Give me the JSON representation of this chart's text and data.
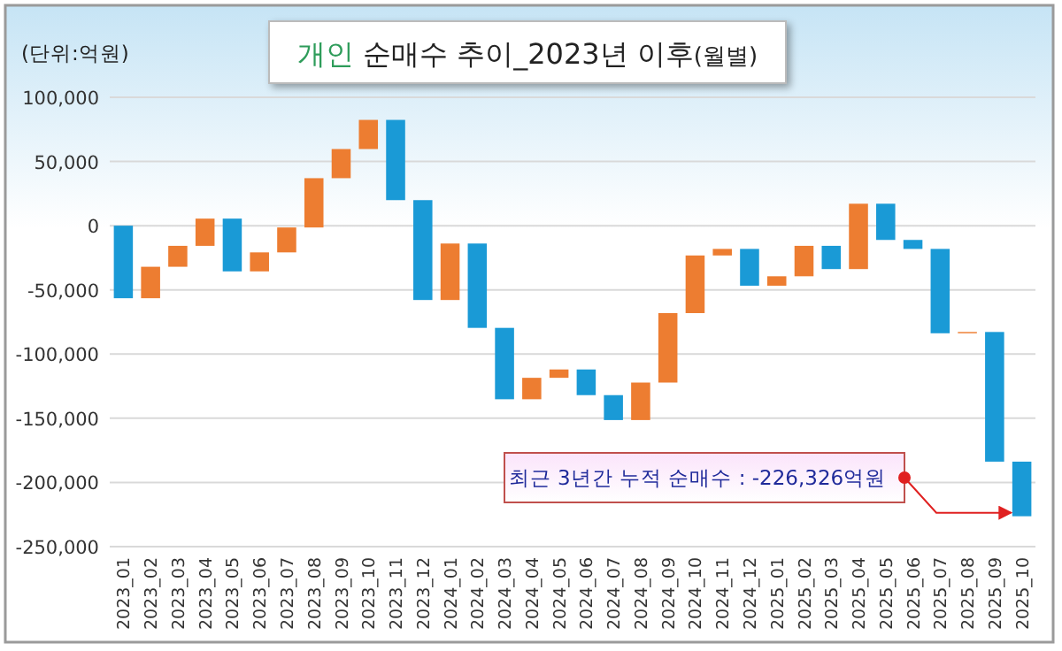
{
  "chart_data": {
    "type": "bar",
    "title": "개인 순매수 추이_2023년 이후(월별)",
    "ylabel": "(단위:억원)",
    "categories": [
      "2023_01",
      "2023_02",
      "2023_03",
      "2023_04",
      "2023_05",
      "2023_06",
      "2023_07",
      "2023_08",
      "2023_09",
      "2023_10",
      "2023_11",
      "2023_12",
      "2024_01",
      "2024_02",
      "2024_03",
      "2024_04",
      "2024_05",
      "2024_06",
      "2024_07",
      "2024_08",
      "2024_09",
      "2024_10",
      "2024_11",
      "2024_12",
      "2025_01",
      "2025_02",
      "2025_03",
      "2025_04",
      "2025_05",
      "2025_06",
      "2025_07",
      "2025_08",
      "2025_09",
      "2025_10"
    ],
    "values": [
      -56500,
      24500,
      16300,
      21200,
      -41100,
      14800,
      19400,
      38400,
      22700,
      22700,
      -62500,
      -77800,
      44000,
      -65700,
      -55600,
      16700,
      6500,
      -20000,
      -19400,
      29200,
      54100,
      44900,
      5100,
      -28700,
      7400,
      23700,
      -18100,
      50900,
      -28200,
      -7000,
      -65700,
      1000,
      -101000,
      -42526
    ],
    "base": [
      0,
      -56500,
      -32000,
      -15700,
      5500,
      -35600,
      -20800,
      -1400,
      37000,
      59700,
      82400,
      19900,
      -57900,
      -13900,
      -79600,
      -135200,
      -118500,
      -112000,
      -132000,
      -151400,
      -122200,
      -68100,
      -23200,
      -18100,
      -46800,
      -39400,
      -15700,
      -33800,
      17100,
      -11100,
      -18100,
      -83800,
      -82800,
      -183800
    ],
    "colors": [
      "#1a9ad6",
      "#ed7d31",
      "#ed7d31",
      "#ed7d31",
      "#1a9ad6",
      "#ed7d31",
      "#ed7d31",
      "#ed7d31",
      "#ed7d31",
      "#ed7d31",
      "#1a9ad6",
      "#1a9ad6",
      "#ed7d31",
      "#1a9ad6",
      "#1a9ad6",
      "#ed7d31",
      "#ed7d31",
      "#1a9ad6",
      "#1a9ad6",
      "#ed7d31",
      "#ed7d31",
      "#ed7d31",
      "#ed7d31",
      "#1a9ad6",
      "#ed7d31",
      "#ed7d31",
      "#1a9ad6",
      "#ed7d31",
      "#1a9ad6",
      "#1a9ad6",
      "#1a9ad6",
      "#ed7d31",
      "#1a9ad6",
      "#1a9ad6"
    ],
    "ylim": [
      -250000,
      100000
    ],
    "yticks": [
      {
        "value": -250000,
        "label": "-250,000"
      },
      {
        "value": -200000,
        "label": "-200,000"
      },
      {
        "value": -150000,
        "label": "-150,000"
      },
      {
        "value": -100000,
        "label": "-100,000"
      },
      {
        "value": -50000,
        "label": "-50,000"
      },
      {
        "value": 0,
        "label": "0"
      },
      {
        "value": 50000,
        "label": "50,000"
      },
      {
        "value": 100000,
        "label": "100,000"
      }
    ],
    "grid": "y",
    "annotations": [
      {
        "text": "최근 3년간 누적 순매수 : -226,326억원",
        "x": "2025_10",
        "y": -226326
      }
    ]
  }
}
